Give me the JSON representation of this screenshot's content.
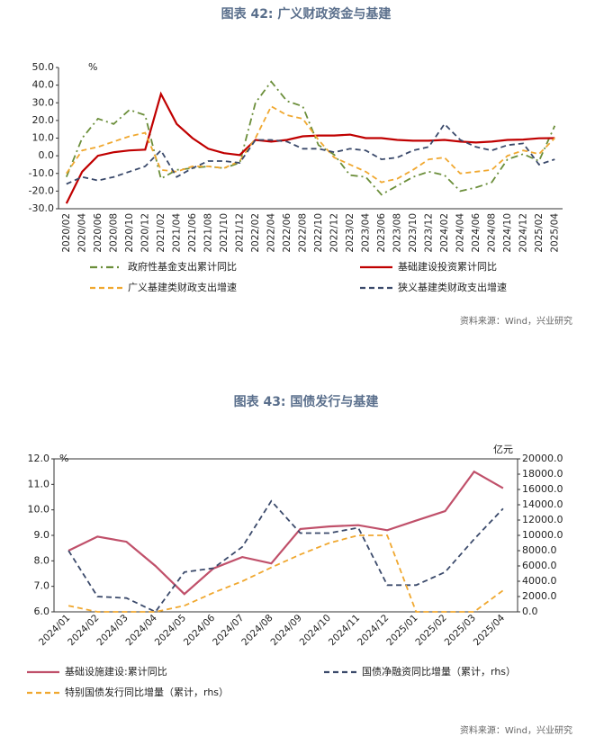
{
  "chart_data": [
    {
      "type": "line",
      "title": "图表 42: 广义财政资金与基建",
      "y_unit": "%",
      "source": "资料来源：Wind，兴业研究",
      "legend": "bottom",
      "categories": [
        "2020/02",
        "2020/04",
        "2020/06",
        "2020/08",
        "2020/10",
        "2020/12",
        "2021/02",
        "2021/04",
        "2021/06",
        "2021/08",
        "2021/10",
        "2021/12",
        "2022/02",
        "2022/04",
        "2022/06",
        "2022/08",
        "2022/10",
        "2022/12",
        "2023/02",
        "2023/04",
        "2023/06",
        "2023/08",
        "2023/10",
        "2023/12",
        "2024/02",
        "2024/04",
        "2024/06",
        "2024/08",
        "2024/10",
        "2024/12",
        "2025/02",
        "2025/04"
      ],
      "ylim": [
        -30,
        50
      ],
      "yticks": [
        {
          "value": -30,
          "label": "-30.0"
        },
        {
          "value": -20,
          "label": "-20.0"
        },
        {
          "value": -10,
          "label": "-10.0"
        },
        {
          "value": 0,
          "label": "0.0"
        },
        {
          "value": 10,
          "label": "10.0"
        },
        {
          "value": 20,
          "label": "20.0"
        },
        {
          "value": 30,
          "label": "30.0"
        },
        {
          "value": 40,
          "label": "40.0"
        },
        {
          "value": 50,
          "label": "50.0"
        }
      ],
      "series": [
        {
          "name": "政府性基金支出累计同比",
          "color": "#6b8e3a",
          "style": "dashdot",
          "values": [
            -12,
            10,
            21,
            18,
            26,
            23,
            -13,
            -8,
            -7,
            -6,
            -7,
            -4,
            30,
            42,
            31,
            28,
            6,
            0.6,
            -11,
            -12,
            -22,
            -17,
            -12,
            -9,
            -11,
            -20,
            -18,
            -15,
            -2,
            1,
            -3,
            17
          ]
        },
        {
          "name": "基础建设投资累计同比",
          "color": "#c00000",
          "style": "solid",
          "values": [
            -27,
            -9,
            0,
            2,
            3,
            3.5,
            35,
            18,
            10,
            4,
            1.5,
            0.4,
            9,
            8,
            9,
            11,
            11.5,
            11.5,
            12,
            10,
            10,
            9,
            8.5,
            8.5,
            9,
            8,
            7.5,
            8,
            9,
            9.2,
            9.9,
            10
          ]
        },
        {
          "name": "广义基建类财政支出增速",
          "color": "#f0a830",
          "style": "dashed",
          "values": [
            -10,
            3,
            5,
            8,
            11,
            13,
            -8,
            -9,
            -6,
            -6,
            -7,
            -3,
            10,
            28,
            23,
            21,
            9,
            -1,
            -5,
            -9,
            -15,
            -13,
            -8,
            -2,
            -1,
            -10,
            -9,
            -8,
            0,
            3,
            1,
            10
          ]
        },
        {
          "name": "狭义基建类财政支出增速",
          "color": "#3b4a6b",
          "style": "dashed",
          "values": [
            -16,
            -12,
            -14,
            -12,
            -9,
            -6,
            3,
            -12,
            -7,
            -3,
            -3,
            -4,
            9,
            9,
            8,
            4,
            4,
            2,
            4,
            3,
            -2,
            -1,
            3,
            5,
            18,
            9,
            5,
            3,
            6,
            7,
            -5,
            -2
          ]
        }
      ]
    },
    {
      "type": "line",
      "title": "图表 43: 国债发行与基建",
      "y_unit": "%",
      "y2_unit": "亿元",
      "source": "资料来源：Wind，兴业研究",
      "legend": "bottom",
      "categories": [
        "2024/01",
        "2024/02",
        "2024/03",
        "2024/04",
        "2024/05",
        "2024/06",
        "2024/07",
        "2024/08",
        "2024/09",
        "2024/10",
        "2024/11",
        "2024/12",
        "2025/01",
        "2025/02",
        "2025/03",
        "2025/04"
      ],
      "ylim": [
        6,
        12
      ],
      "yticks": [
        {
          "value": 6,
          "label": "6.0"
        },
        {
          "value": 7,
          "label": "7.0"
        },
        {
          "value": 8,
          "label": "8.0"
        },
        {
          "value": 9,
          "label": "9.0"
        },
        {
          "value": 10,
          "label": "10.0"
        },
        {
          "value": 11,
          "label": "11.0"
        },
        {
          "value": 12,
          "label": "12.0"
        }
      ],
      "y2lim": [
        0,
        20000
      ],
      "y2ticks": [
        {
          "value": 0,
          "label": "0.0"
        },
        {
          "value": 2000,
          "label": "2000.0"
        },
        {
          "value": 4000,
          "label": "4000.0"
        },
        {
          "value": 6000,
          "label": "6000.0"
        },
        {
          "value": 8000,
          "label": "8000.0"
        },
        {
          "value": 10000,
          "label": "10000.0"
        },
        {
          "value": 12000,
          "label": "12000.0"
        },
        {
          "value": 14000,
          "label": "14000.0"
        },
        {
          "value": 16000,
          "label": "16000.0"
        },
        {
          "value": 18000,
          "label": "18000.0"
        },
        {
          "value": 20000,
          "label": "20000.0"
        }
      ],
      "series": [
        {
          "name": "基础设施建设:累计同比",
          "color": "#c0506a",
          "style": "solid",
          "values": [
            8.4,
            8.95,
            8.75,
            7.8,
            6.7,
            7.7,
            8.15,
            7.9,
            9.25,
            9.35,
            9.4,
            9.2,
            9.58,
            9.95,
            11.5,
            10.85
          ]
        },
        {
          "name": "国债净融资同比增量（累计，rhs）",
          "color": "#3b4a6b",
          "style": "dashed",
          "axis": "y2",
          "values": [
            8000,
            2000,
            1800,
            0,
            5200,
            5700,
            8500,
            14500,
            10300,
            10300,
            11000,
            3500,
            3500,
            5200,
            9500,
            13500
          ]
        },
        {
          "name": "特别国债发行同比增量（累计，rhs）",
          "color": "#f0a830",
          "style": "dashed",
          "axis": "y2",
          "values": [
            800,
            0,
            0,
            0,
            800,
            2500,
            4000,
            5800,
            7500,
            9000,
            10000,
            10000,
            0,
            0,
            0,
            2800
          ]
        }
      ]
    }
  ]
}
